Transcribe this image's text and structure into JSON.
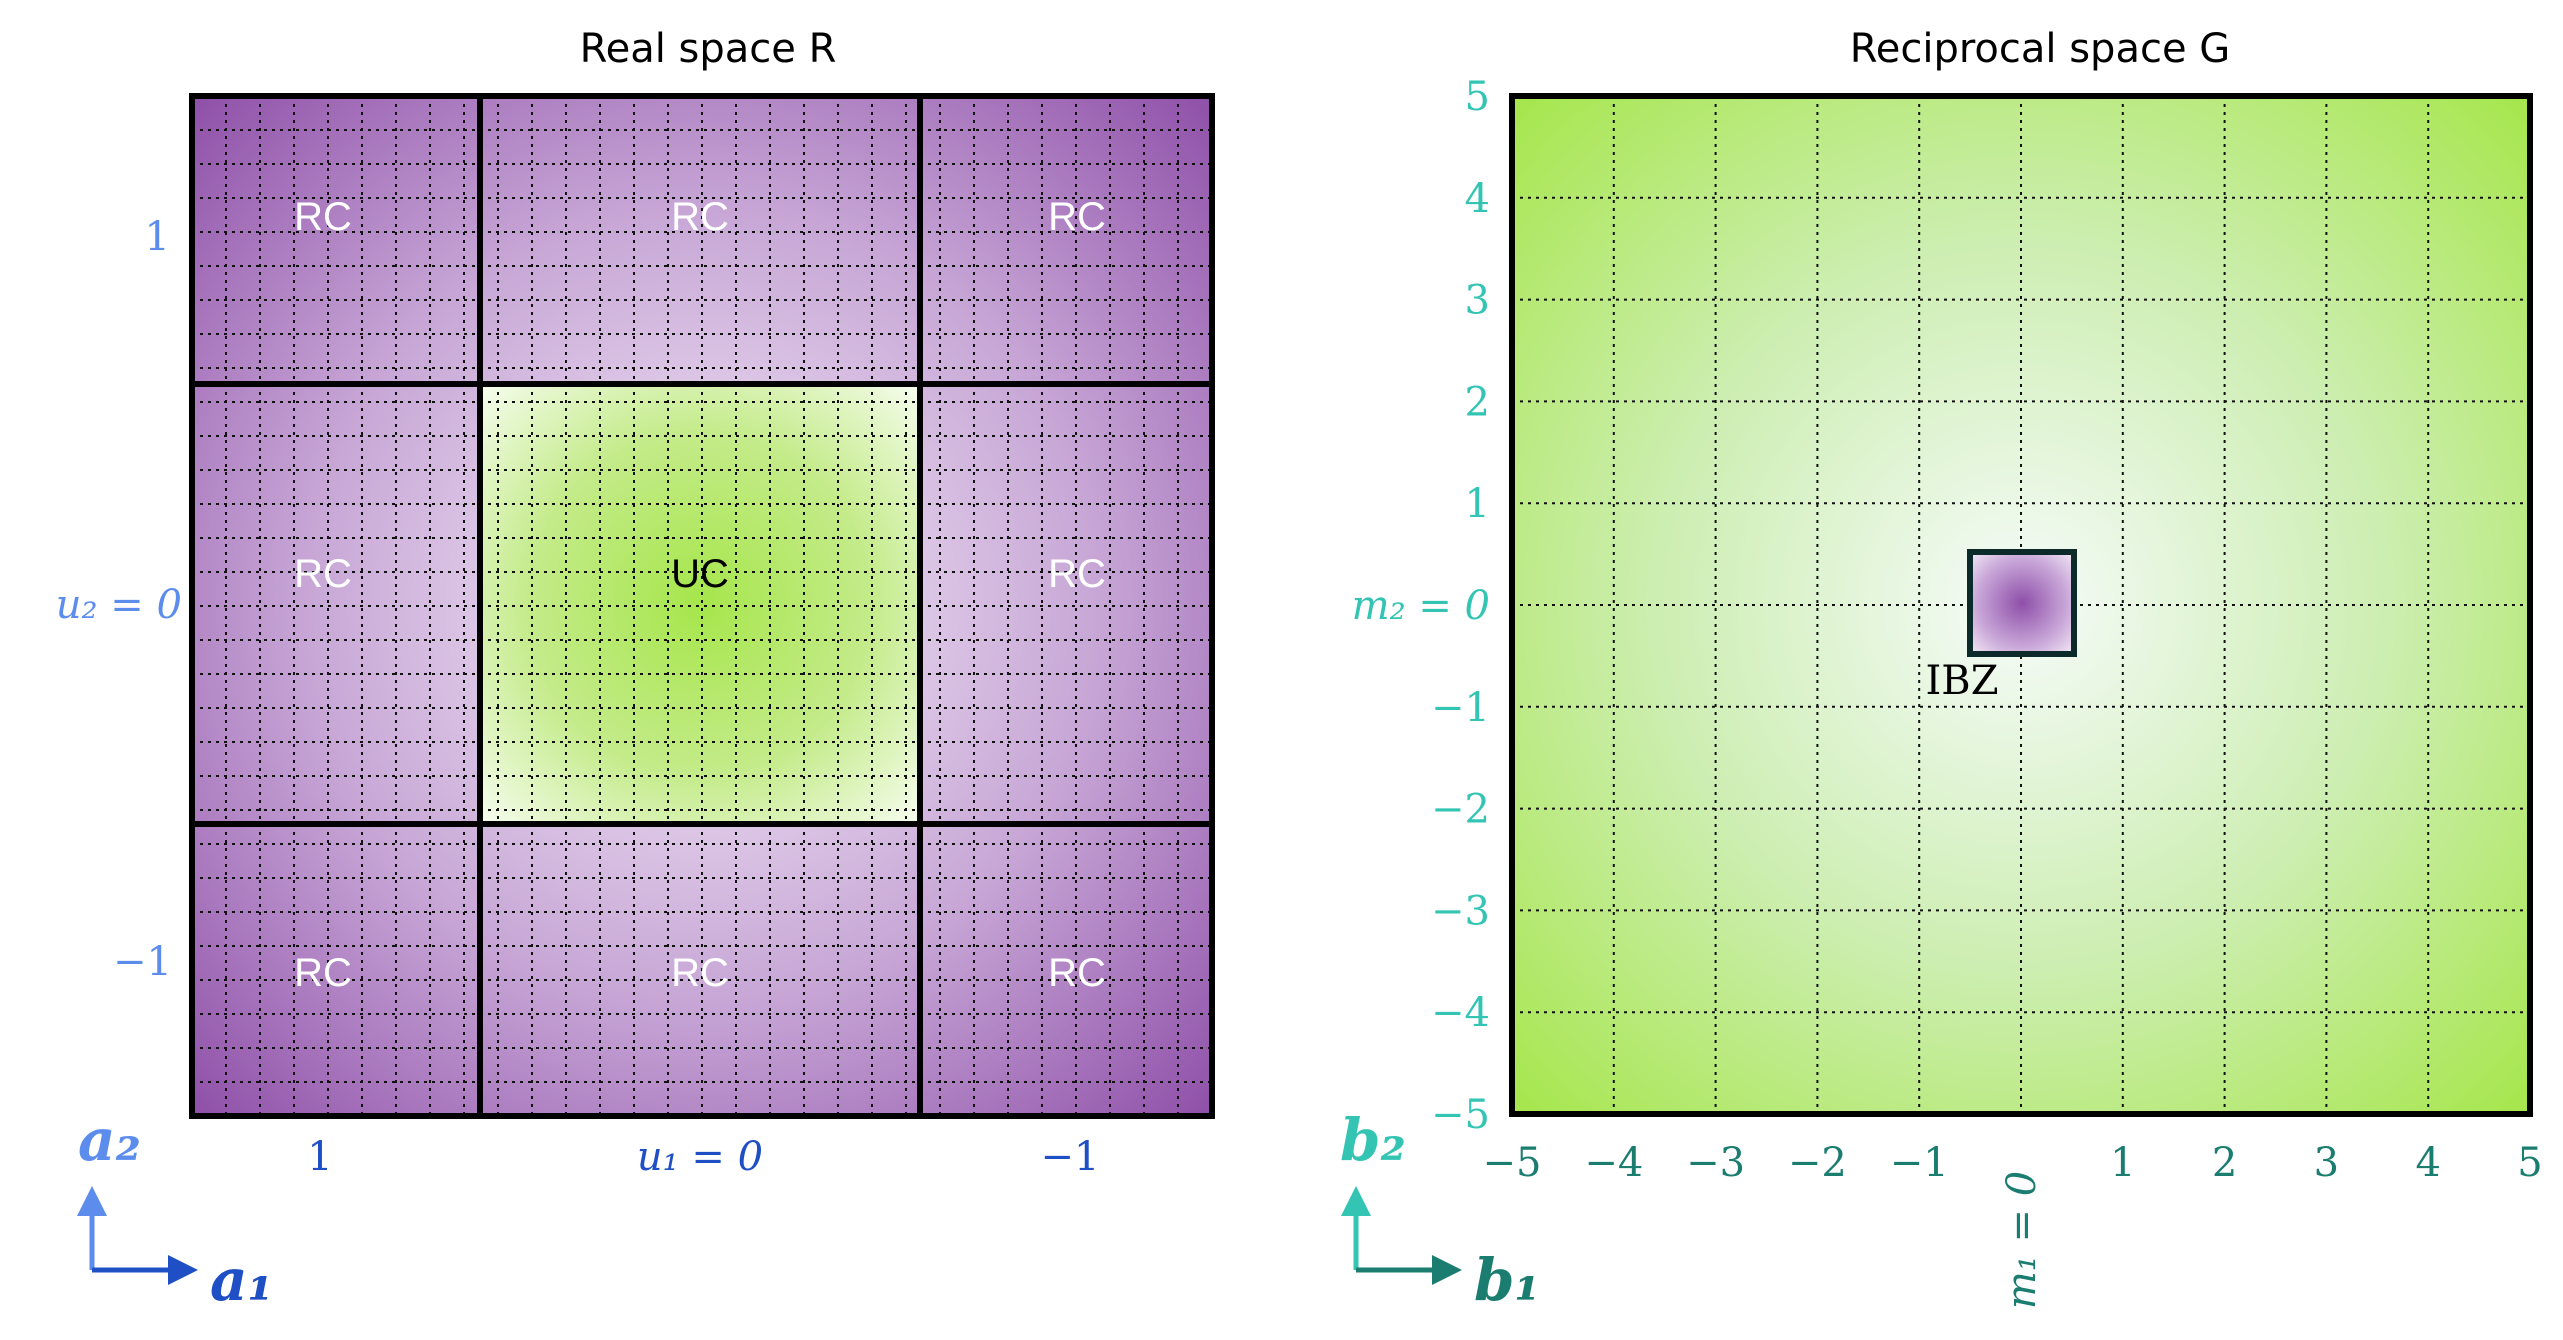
{
  "real_space": {
    "title": "Real space R",
    "cells": [
      {
        "label": "RC",
        "u1": 1,
        "u2": 1
      },
      {
        "label": "RC",
        "u1": 0,
        "u2": 1
      },
      {
        "label": "RC",
        "u1": -1,
        "u2": 1
      },
      {
        "label": "RC",
        "u1": 1,
        "u2": 0
      },
      {
        "label": "UC",
        "u1": 0,
        "u2": 0
      },
      {
        "label": "RC",
        "u1": -1,
        "u2": 0
      },
      {
        "label": "RC",
        "u1": 1,
        "u2": -1
      },
      {
        "label": "RC",
        "u1": 0,
        "u2": -1
      },
      {
        "label": "RC",
        "u1": -1,
        "u2": -1
      }
    ],
    "u1_labels": [
      "1",
      "u₁ = 0",
      "−1"
    ],
    "u2_labels": [
      "1",
      "u₂ = 0",
      "−1"
    ],
    "axis_vectors": {
      "a1": "a₁",
      "a2": "a₂"
    },
    "colors": {
      "a1": "#1f4fc4",
      "a2": "#5c8ded",
      "uc_fill": "#a6e64b",
      "rc_fill": "#8e4fa8"
    }
  },
  "reciprocal_space": {
    "title": "Reciprocal space G",
    "m1_ticks": [
      "−5",
      "−4",
      "−3",
      "−2",
      "−1",
      "m₁ = 0",
      "1",
      "2",
      "3",
      "4",
      "5"
    ],
    "m2_ticks": [
      "5",
      "4",
      "3",
      "2",
      "1",
      "m₂ = 0",
      "−1",
      "−2",
      "−3",
      "−4",
      "−5"
    ],
    "ibz_label": "IBZ",
    "axis_vectors": {
      "b1": "b₁",
      "b2": "b₂"
    },
    "colors": {
      "b1": "#1a7d70",
      "b2": "#33c4b4",
      "grid_fill": "#a6e64b",
      "ibz_fill": "#8e4fa8"
    }
  }
}
